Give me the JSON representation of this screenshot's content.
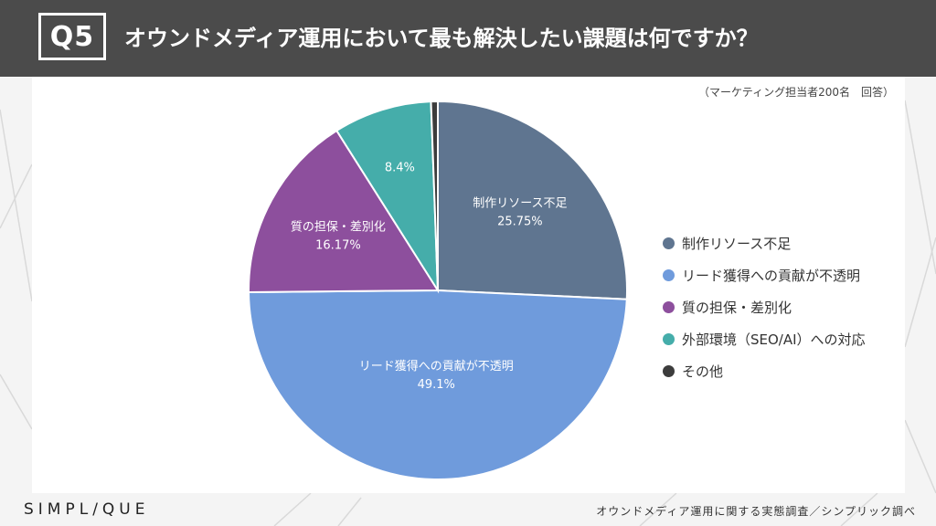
{
  "header": {
    "qnum": "Q5",
    "question": "オウンドメディア運用において最も解決したい課題は何ですか？"
  },
  "note": "（マーケティング担当者200名　回答）",
  "chart_data": {
    "type": "pie",
    "categories": [
      "制作リソース不足",
      "リード獲得への貢献が不透明",
      "質の担保・差別化",
      "外部環境（SEO/AI）への対応",
      "その他"
    ],
    "values": [
      25.75,
      49.1,
      16.17,
      8.4,
      0.58
    ],
    "data_labels": [
      "25.75%",
      "49.1%",
      "16.17%",
      "8.4%",
      ""
    ],
    "colors": [
      "#5f7590",
      "#6f9bdc",
      "#8d4f9d",
      "#45adaa",
      "#3c3c3c"
    ],
    "legend_position": "right"
  },
  "footer": {
    "logo": "SIMPL/QUE",
    "source": "オウンドメディア運用に関する実態調査／シンプリック調べ"
  }
}
